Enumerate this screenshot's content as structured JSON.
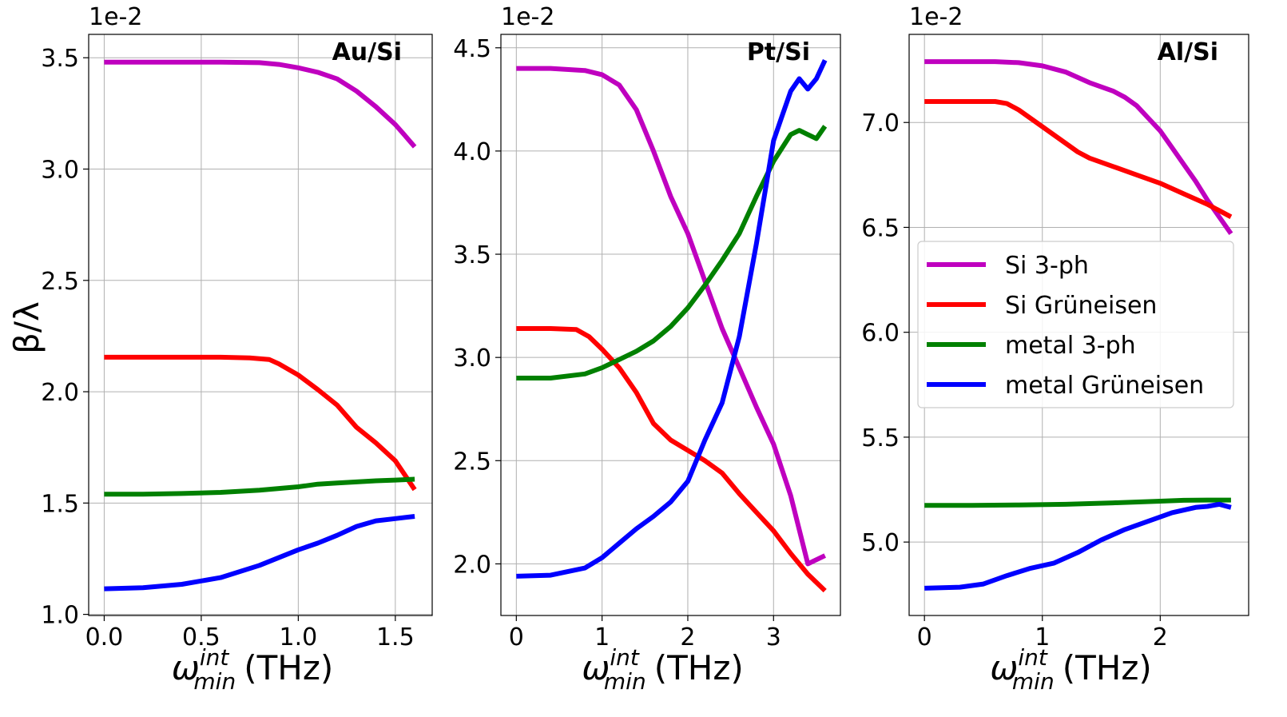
{
  "figure": {
    "ylabel": "β/λ",
    "colors": {
      "si_3ph": "#bf00bf",
      "si_grun": "#ff0000",
      "metal_3ph": "#008000",
      "metal_grun": "#0000ff"
    }
  },
  "legend": {
    "placement": "right panel, middle-left",
    "entries": [
      "Si 3-ph",
      "Si Grüneisen",
      "metal 3-ph",
      "metal Grüneisen"
    ]
  },
  "chart_data": [
    {
      "type": "line",
      "title": "Au/Si",
      "xlabel_main": "ω",
      "xlabel_sup": "int",
      "xlabel_sub": "min",
      "xlabel_unit": "(THz)",
      "offset_label": "1e-2",
      "xlim": [
        -0.08,
        1.69
      ],
      "ylim": [
        0.995,
        3.605
      ],
      "xticks": [
        0,
        0.5,
        1.0,
        1.5
      ],
      "xtick_labels": [
        "0.0",
        "0.5",
        "1.0",
        "1.5"
      ],
      "yticks": [
        1.0,
        1.5,
        2.0,
        2.5,
        3.0,
        3.5
      ],
      "ytick_labels": [
        "1.0",
        "1.5",
        "2.0",
        "2.5",
        "3.0",
        "3.5"
      ],
      "series": [
        {
          "name": "Si 3-ph",
          "key": "si_3ph",
          "x": [
            0,
            0.2,
            0.4,
            0.6,
            0.8,
            0.9,
            1.0,
            1.1,
            1.2,
            1.3,
            1.4,
            1.5,
            1.55,
            1.6
          ],
          "y": [
            3.48,
            3.48,
            3.48,
            3.48,
            3.478,
            3.47,
            3.455,
            3.435,
            3.405,
            3.35,
            3.28,
            3.2,
            3.15,
            3.1
          ]
        },
        {
          "name": "Si Grüneisen",
          "key": "si_grun",
          "x": [
            0,
            0.2,
            0.4,
            0.6,
            0.75,
            0.85,
            0.9,
            1.0,
            1.1,
            1.2,
            1.3,
            1.4,
            1.5,
            1.6
          ],
          "y": [
            2.155,
            2.155,
            2.155,
            2.155,
            2.152,
            2.145,
            2.125,
            2.075,
            2.01,
            1.94,
            1.84,
            1.77,
            1.69,
            1.56
          ]
        },
        {
          "name": "metal 3-ph",
          "key": "metal_3ph",
          "x": [
            0,
            0.2,
            0.4,
            0.6,
            0.8,
            1.0,
            1.1,
            1.2,
            1.3,
            1.4,
            1.5,
            1.6
          ],
          "y": [
            1.54,
            1.54,
            1.543,
            1.548,
            1.558,
            1.573,
            1.585,
            1.59,
            1.595,
            1.6,
            1.603,
            1.607
          ]
        },
        {
          "name": "metal Grüneisen",
          "key": "metal_grun",
          "x": [
            0,
            0.2,
            0.4,
            0.6,
            0.8,
            1.0,
            1.1,
            1.2,
            1.3,
            1.4,
            1.5,
            1.6
          ],
          "y": [
            1.115,
            1.12,
            1.135,
            1.165,
            1.22,
            1.29,
            1.32,
            1.355,
            1.395,
            1.42,
            1.43,
            1.44
          ]
        }
      ]
    },
    {
      "type": "line",
      "title": "Pt/Si",
      "xlabel_main": "ω",
      "xlabel_sup": "int",
      "xlabel_sub": "min",
      "xlabel_unit": "(THz)",
      "offset_label": "1e-2",
      "xlim": [
        -0.18,
        3.78
      ],
      "ylim": [
        1.75,
        4.565
      ],
      "xticks": [
        0,
        1,
        2,
        3
      ],
      "xtick_labels": [
        "0",
        "1",
        "2",
        "3"
      ],
      "yticks": [
        2.0,
        2.5,
        3.0,
        3.5,
        4.0,
        4.5
      ],
      "ytick_labels": [
        "2.0",
        "2.5",
        "3.0",
        "3.5",
        "4.0",
        "4.5"
      ],
      "series": [
        {
          "name": "Si 3-ph",
          "key": "si_3ph",
          "x": [
            0,
            0.4,
            0.8,
            1.0,
            1.2,
            1.4,
            1.6,
            1.8,
            2.0,
            2.2,
            2.4,
            2.6,
            2.8,
            3.0,
            3.2,
            3.4,
            3.6
          ],
          "y": [
            4.4,
            4.4,
            4.39,
            4.37,
            4.32,
            4.2,
            4.0,
            3.78,
            3.6,
            3.37,
            3.14,
            2.95,
            2.76,
            2.58,
            2.33,
            2.0,
            2.04
          ]
        },
        {
          "name": "Si Grüneisen",
          "key": "si_grun",
          "x": [
            0,
            0.4,
            0.7,
            0.85,
            1.0,
            1.2,
            1.4,
            1.6,
            1.8,
            2.0,
            2.2,
            2.4,
            2.6,
            2.8,
            3.0,
            3.2,
            3.4,
            3.6
          ],
          "y": [
            3.14,
            3.14,
            3.135,
            3.1,
            3.04,
            2.95,
            2.83,
            2.68,
            2.6,
            2.55,
            2.5,
            2.44,
            2.34,
            2.25,
            2.16,
            2.05,
            1.95,
            1.87
          ]
        },
        {
          "name": "metal 3-ph",
          "key": "metal_3ph",
          "x": [
            0,
            0.4,
            0.8,
            1.0,
            1.2,
            1.4,
            1.6,
            1.8,
            2.0,
            2.2,
            2.4,
            2.6,
            2.8,
            3.0,
            3.2,
            3.3,
            3.4,
            3.5,
            3.6
          ],
          "y": [
            2.9,
            2.9,
            2.92,
            2.95,
            2.99,
            3.03,
            3.08,
            3.15,
            3.24,
            3.35,
            3.47,
            3.6,
            3.78,
            3.95,
            4.08,
            4.1,
            4.08,
            4.06,
            4.12
          ]
        },
        {
          "name": "metal Grüneisen",
          "key": "metal_grun",
          "x": [
            0,
            0.4,
            0.8,
            1.0,
            1.2,
            1.4,
            1.6,
            1.8,
            2.0,
            2.2,
            2.4,
            2.6,
            2.8,
            3.0,
            3.1,
            3.2,
            3.3,
            3.4,
            3.5,
            3.6
          ],
          "y": [
            1.94,
            1.945,
            1.98,
            2.03,
            2.1,
            2.17,
            2.23,
            2.3,
            2.4,
            2.6,
            2.78,
            3.1,
            3.55,
            4.05,
            4.17,
            4.29,
            4.35,
            4.3,
            4.35,
            4.44
          ]
        }
      ]
    },
    {
      "type": "line",
      "title": "Al/Si",
      "xlabel_main": "ω",
      "xlabel_sup": "int",
      "xlabel_sub": "min",
      "xlabel_unit": "(THz)",
      "offset_label": "1e-2",
      "xlim": [
        -0.13,
        2.75
      ],
      "ylim": [
        4.65,
        7.42
      ],
      "xticks": [
        0,
        1,
        2
      ],
      "xtick_labels": [
        "0",
        "1",
        "2"
      ],
      "yticks": [
        5.0,
        5.5,
        6.0,
        6.5,
        7.0
      ],
      "ytick_labels": [
        "5.0",
        "5.5",
        "6.0",
        "6.5",
        "7.0"
      ],
      "series": [
        {
          "name": "Si 3-ph",
          "key": "si_3ph",
          "x": [
            0,
            0.3,
            0.6,
            0.8,
            1.0,
            1.2,
            1.4,
            1.6,
            1.7,
            1.8,
            1.9,
            2.0,
            2.1,
            2.2,
            2.3,
            2.4,
            2.5,
            2.6
          ],
          "y": [
            7.29,
            7.29,
            7.29,
            7.285,
            7.27,
            7.24,
            7.19,
            7.15,
            7.12,
            7.08,
            7.02,
            6.96,
            6.88,
            6.8,
            6.72,
            6.63,
            6.55,
            6.47
          ]
        },
        {
          "name": "Si Grüneisen",
          "key": "si_grun",
          "x": [
            0,
            0.3,
            0.6,
            0.7,
            0.8,
            1.0,
            1.2,
            1.3,
            1.4,
            1.6,
            1.8,
            2.0,
            2.2,
            2.4,
            2.6
          ],
          "y": [
            7.1,
            7.1,
            7.1,
            7.09,
            7.06,
            6.98,
            6.9,
            6.86,
            6.83,
            6.79,
            6.75,
            6.71,
            6.66,
            6.61,
            6.55
          ]
        },
        {
          "name": "metal 3-ph",
          "key": "metal_3ph",
          "x": [
            0,
            0.4,
            0.8,
            1.2,
            1.6,
            2.0,
            2.2,
            2.4,
            2.6
          ],
          "y": [
            5.175,
            5.175,
            5.177,
            5.18,
            5.187,
            5.195,
            5.199,
            5.2,
            5.2
          ]
        },
        {
          "name": "metal Grüneisen",
          "key": "metal_grun",
          "x": [
            0,
            0.3,
            0.5,
            0.7,
            0.9,
            1.1,
            1.3,
            1.5,
            1.7,
            1.9,
            2.1,
            2.3,
            2.4,
            2.5,
            2.6
          ],
          "y": [
            4.78,
            4.785,
            4.8,
            4.84,
            4.875,
            4.9,
            4.95,
            5.01,
            5.06,
            5.1,
            5.14,
            5.165,
            5.17,
            5.18,
            5.165
          ]
        }
      ]
    }
  ]
}
